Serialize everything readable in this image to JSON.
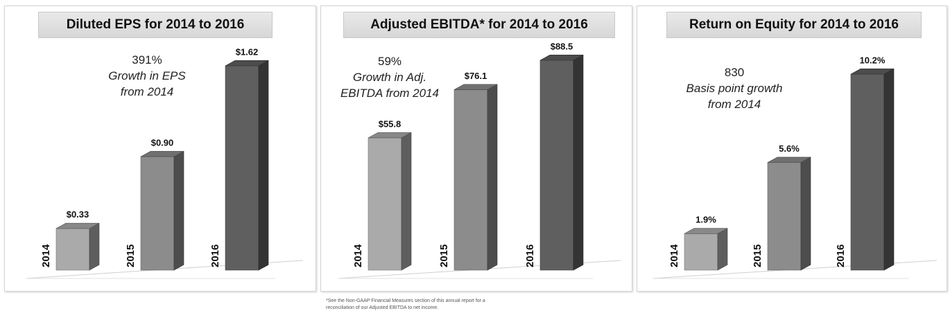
{
  "chart_data": [
    {
      "type": "bar",
      "title": "Diluted EPS for 2014 to 2016",
      "categories": [
        "2014",
        "2015",
        "2016"
      ],
      "values": [
        0.33,
        0.9,
        1.62
      ],
      "data_labels": [
        "$0.33",
        "$0.90",
        "$1.62"
      ],
      "ylim": [
        0,
        1.62
      ],
      "growth_value": "391%",
      "growth_text": "Growth in EPS\nfrom 2014",
      "bar_colors": [
        "#aaaaaa",
        "#8c8c8c",
        "#5f5f5f"
      ]
    },
    {
      "type": "bar",
      "title": "Adjusted EBITDA* for 2014 to 2016",
      "categories": [
        "2014",
        "2015",
        "2016"
      ],
      "values": [
        55.8,
        76.1,
        88.5
      ],
      "data_labels": [
        "$55.8",
        "$76.1",
        "$88.5"
      ],
      "ylim": [
        0,
        88.5
      ],
      "growth_value": "59%",
      "growth_text": "Growth in Adj.\nEBITDA  from 2014",
      "bar_colors": [
        "#aaaaaa",
        "#8c8c8c",
        "#5f5f5f"
      ]
    },
    {
      "type": "bar",
      "title": "Return on Equity for 2014 to 2016",
      "categories": [
        "2014",
        "2015",
        "2016"
      ],
      "values": [
        1.9,
        5.6,
        10.2
      ],
      "data_labels": [
        "1.9%",
        "5.6%",
        "10.2%"
      ],
      "ylim": [
        0,
        10.2
      ],
      "growth_value": "830",
      "growth_text": "Basis point growth\nfrom 2014",
      "bar_colors": [
        "#aaaaaa",
        "#8c8c8c",
        "#5f5f5f"
      ]
    }
  ],
  "footnote": "*See the Non-GAAP Financial Measures section of this annual report for a\nreconciliation of our Adjusted EBITDA to net income."
}
